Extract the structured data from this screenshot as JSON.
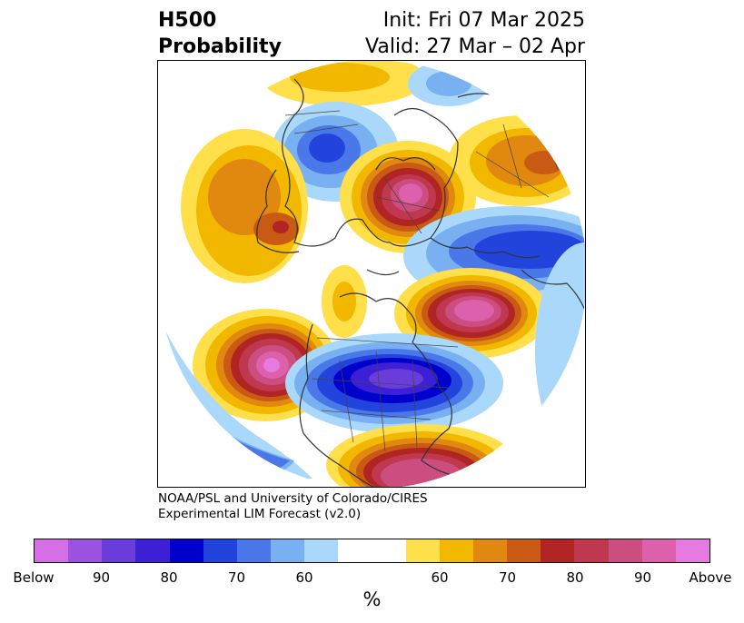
{
  "title": {
    "left_line1": "H500",
    "left_line2": "Probability",
    "right_line1": "Init: Fri 07 Mar 2025",
    "right_line2": "Valid: 27 Mar – 02 Apr"
  },
  "credit": {
    "line1": "NOAA/PSL and University of Colorado/CIRES",
    "line2": "Experimental LIM Forecast (v2.0)"
  },
  "colorbar": {
    "colors": [
      "#d66ee6",
      "#9c52e0",
      "#6a3ddb",
      "#3d1fd6",
      "#0000cc",
      "#2244dd",
      "#4a78e8",
      "#78b0f2",
      "#aad8fa",
      "#ffffff",
      "#ffe04a",
      "#f2b800",
      "#e0880f",
      "#c85a14",
      "#b02424",
      "#c03850",
      "#cc4d80",
      "#dd60ac",
      "#e67ae0"
    ],
    "tick_labels": [
      "Below",
      "90",
      "80",
      "70",
      "60",
      "60",
      "70",
      "80",
      "90",
      "Above"
    ],
    "units": "%"
  }
}
